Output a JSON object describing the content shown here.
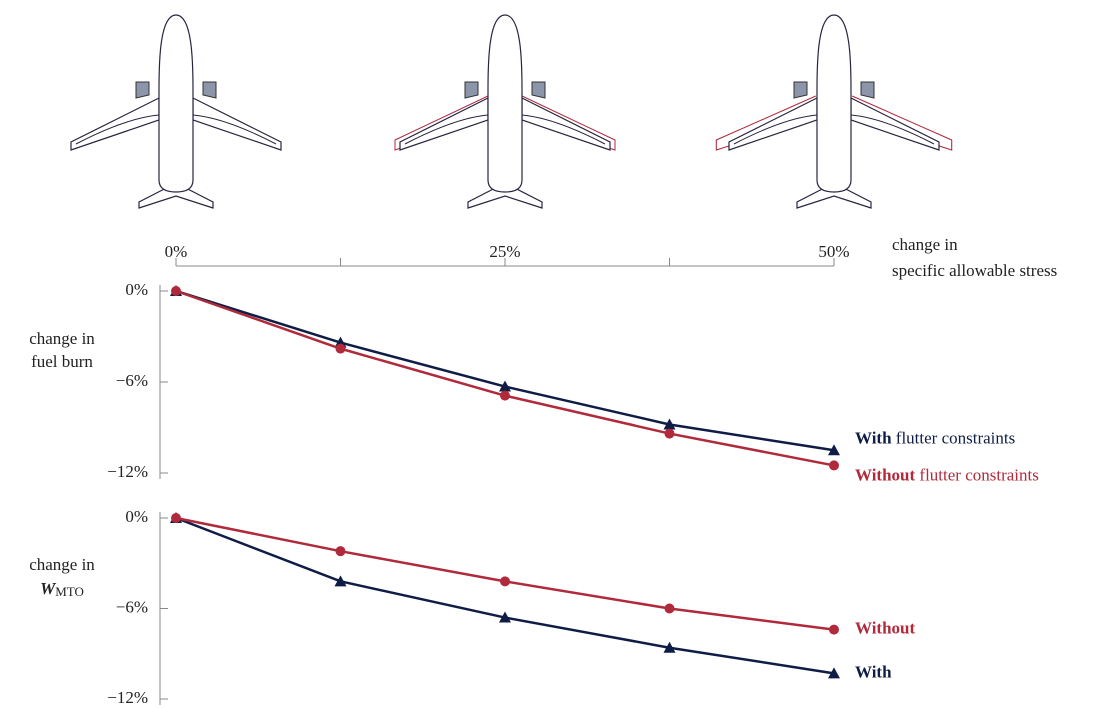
{
  "chart_data": [
    {
      "type": "line",
      "x": [
        0,
        12.5,
        25,
        37.5,
        50
      ],
      "xlim": [
        0,
        50
      ],
      "xticks": [
        {
          "value": 0,
          "label": "0%"
        },
        {
          "value": 25,
          "label": "25%"
        },
        {
          "value": 50,
          "label": "50%"
        }
      ],
      "xminor": [
        12.5,
        37.5
      ],
      "xlabel": [
        "change in",
        "specific allowable stress"
      ],
      "ylabel": [
        "change in",
        "fuel burn"
      ],
      "ylim": [
        0,
        -12
      ],
      "yticks": [
        {
          "value": 0,
          "label": "0%"
        },
        {
          "value": -6,
          "label": "−6%"
        },
        {
          "value": -12,
          "label": "−12%"
        }
      ],
      "legend_note": "flutter constraints",
      "series": [
        {
          "name": "With",
          "color": "#0f1c45",
          "marker": "triangle",
          "values": [
            0,
            -3.4,
            -6.3,
            -8.8,
            -10.5
          ]
        },
        {
          "name": "Without",
          "color": "#b02a3c",
          "marker": "circle",
          "values": [
            0,
            -3.8,
            -6.9,
            -9.4,
            -11.5
          ]
        }
      ]
    },
    {
      "type": "line",
      "x": [
        0,
        12.5,
        25,
        37.5,
        50
      ],
      "xlim": [
        0,
        50
      ],
      "ylabel": [
        "change in"
      ],
      "ylabel_symbol": "W",
      "ylabel_subscript": "MTO",
      "ylim": [
        0,
        -12
      ],
      "yticks": [
        {
          "value": 0,
          "label": "0%"
        },
        {
          "value": -6,
          "label": "−6%"
        },
        {
          "value": -12,
          "label": "−12%"
        }
      ],
      "series": [
        {
          "name": "With",
          "color": "#0f1c45",
          "marker": "triangle",
          "values": [
            0,
            -4.2,
            -6.6,
            -8.6,
            -10.3
          ]
        },
        {
          "name": "Without",
          "color": "#b02a3c",
          "marker": "circle",
          "values": [
            0,
            -2.2,
            -4.2,
            -6.0,
            -7.4
          ]
        }
      ]
    }
  ]
}
